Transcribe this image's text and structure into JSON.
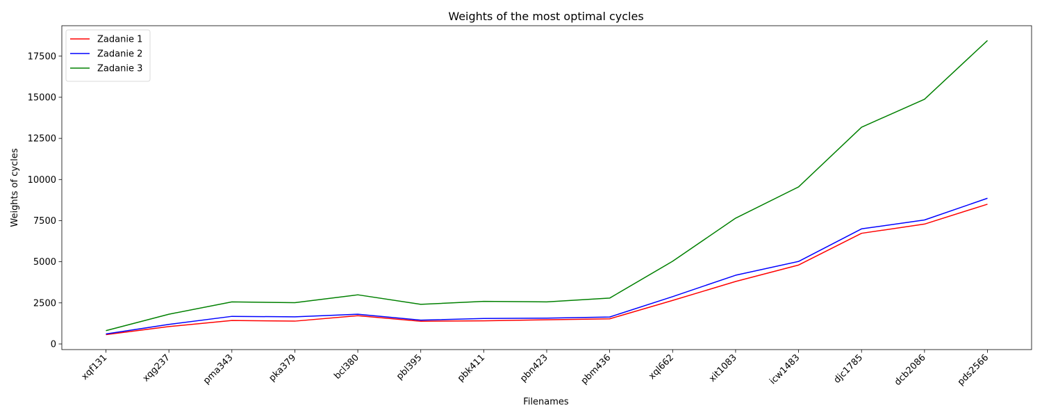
{
  "chart_data": {
    "type": "line",
    "title": "Weights of the most optimal cycles",
    "xlabel": "Filenames",
    "ylabel": "Weights of cycles",
    "categories": [
      "xqf131",
      "xqg237",
      "pma343",
      "pka379",
      "bcl380",
      "pbl395",
      "pbk411",
      "pbn423",
      "pbm436",
      "xql662",
      "xit1083",
      "icw1483",
      "djc1785",
      "dcb2086",
      "pds2566"
    ],
    "ylim": [
      -340,
      19350
    ],
    "yticks": [
      0,
      2500,
      5000,
      7500,
      10000,
      12500,
      15000,
      17500
    ],
    "ytick_labels": [
      "0",
      "2500",
      "5000",
      "7500",
      "10000",
      "12500",
      "15000",
      "17500"
    ],
    "grid": false,
    "legend_position": "top-left",
    "series": [
      {
        "name": "Zadanie 1",
        "color": "#ff0000",
        "values": [
          570,
          1060,
          1430,
          1390,
          1720,
          1380,
          1410,
          1470,
          1530,
          2650,
          3800,
          4800,
          6730,
          7290,
          8500
        ]
      },
      {
        "name": "Zadanie 2",
        "color": "#0000ff",
        "values": [
          610,
          1190,
          1680,
          1650,
          1810,
          1450,
          1550,
          1570,
          1640,
          2880,
          4180,
          5020,
          7000,
          7540,
          8860
        ]
      },
      {
        "name": "Zadanie 3",
        "color": "#008000",
        "values": [
          810,
          1810,
          2560,
          2510,
          2990,
          2410,
          2590,
          2560,
          2790,
          5030,
          7650,
          9550,
          13180,
          14880,
          18450
        ]
      }
    ]
  }
}
